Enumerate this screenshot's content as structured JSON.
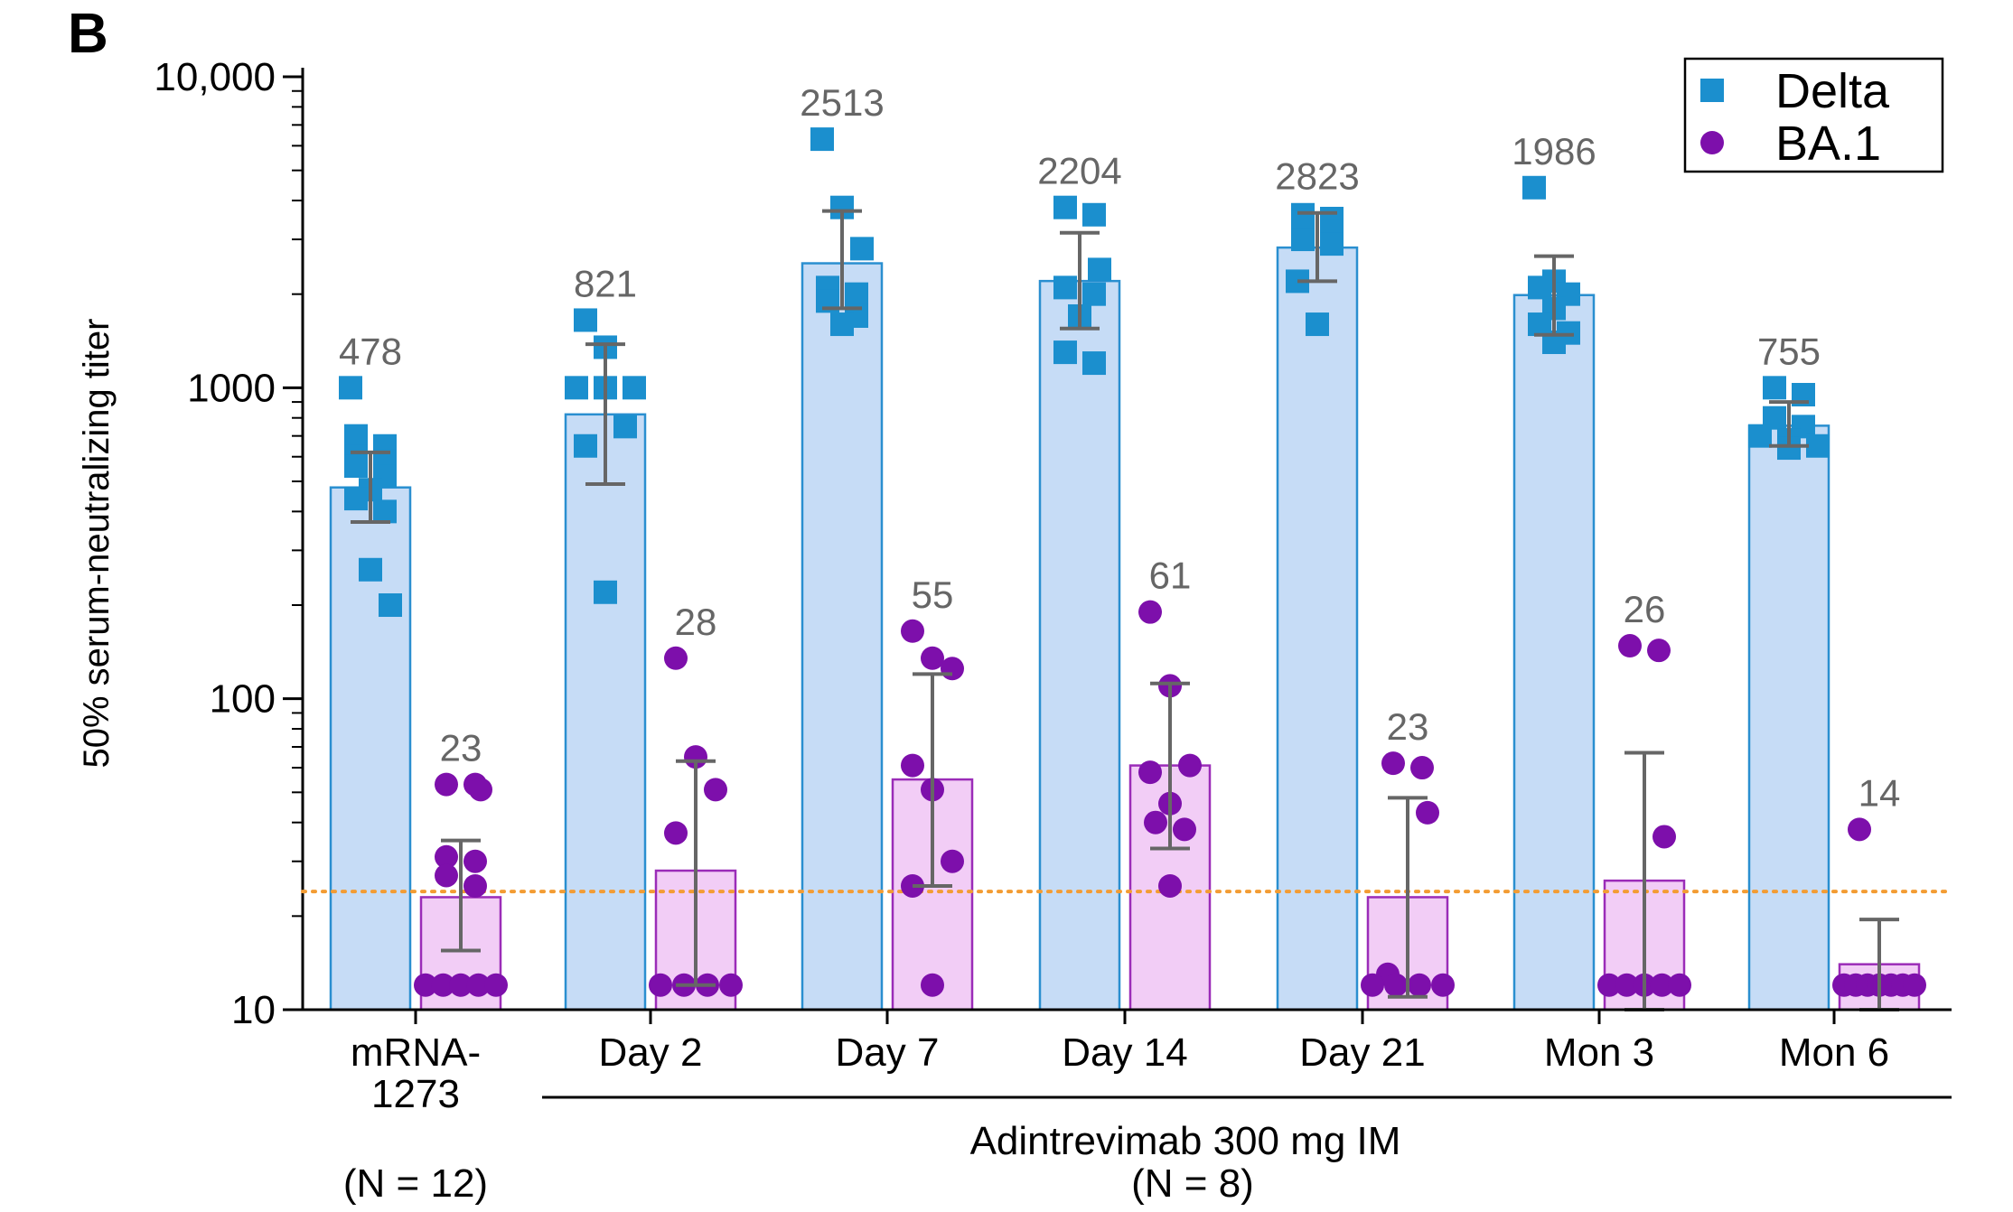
{
  "panel_label": "B",
  "chart_data": {
    "type": "bar",
    "y_scale": "log",
    "ylim": [
      10,
      10000
    ],
    "ylabel": "50% serum-neutralizing titer",
    "y_ticks": [
      10,
      100,
      1000,
      10000
    ],
    "y_tick_labels": [
      "10",
      "100",
      "1000",
      "10,000"
    ],
    "categories": [
      {
        "lines": [
          "mRNA-",
          "1273"
        ]
      },
      {
        "lines": [
          "Day 2"
        ]
      },
      {
        "lines": [
          "Day 7"
        ]
      },
      {
        "lines": [
          "Day 14"
        ]
      },
      {
        "lines": [
          "Day 21"
        ]
      },
      {
        "lines": [
          "Mon 3"
        ]
      },
      {
        "lines": [
          "Mon 6"
        ]
      }
    ],
    "reference_line": {
      "value": 24,
      "style": "dotted",
      "color": "#f39c33"
    },
    "legend": {
      "placement": "top-right"
    },
    "series": [
      {
        "name": "Delta",
        "marker": "square",
        "color": "#1b8fce",
        "bar_fill": "#c6dcf6",
        "bar_stroke": "#2a8fd0",
        "values": [
          478,
          821,
          2513,
          2204,
          2823,
          1986,
          755
        ],
        "labels": [
          "478",
          "821",
          "2513",
          "2204",
          "2823",
          "1986",
          "755"
        ],
        "error": [
          [
            370,
            620
          ],
          [
            490,
            1380
          ],
          [
            1800,
            3700
          ],
          [
            1550,
            3150
          ],
          [
            2200,
            3650
          ],
          [
            1480,
            2650
          ],
          [
            650,
            900
          ]
        ],
        "points": [
          [
            1000,
            700,
            650,
            600,
            580,
            560,
            520,
            470,
            440,
            400,
            260,
            200
          ],
          [
            1650,
            1350,
            1000,
            1000,
            1000,
            750,
            650,
            220
          ],
          [
            6300,
            3800,
            2800,
            2100,
            2000,
            1900,
            1700,
            1600
          ],
          [
            3800,
            3600,
            2400,
            2100,
            2000,
            1300,
            1200,
            1700
          ],
          [
            3600,
            3500,
            3400,
            3200,
            3000,
            2900,
            2200,
            1600
          ],
          [
            4400,
            2200,
            2100,
            2000,
            1800,
            1600,
            1500,
            1400
          ],
          [
            1000,
            950,
            800,
            750,
            700,
            680,
            650,
            640
          ]
        ]
      },
      {
        "name": "BA.1",
        "marker": "circle",
        "color": "#7d0fab",
        "bar_fill": "#f2cdf6",
        "bar_stroke": "#9b2cb8",
        "values": [
          23,
          28,
          55,
          61,
          23,
          26,
          14
        ],
        "labels": [
          "23",
          "28",
          "55",
          "61",
          "23",
          "26",
          "14"
        ],
        "error": [
          [
            15.5,
            35
          ],
          [
            12,
            63
          ],
          [
            25,
            120
          ],
          [
            33,
            112
          ],
          [
            11,
            48
          ],
          [
            10,
            67
          ],
          [
            10,
            19.5
          ]
        ],
        "points": [
          [
            53,
            53,
            51,
            31,
            30,
            27,
            25,
            12,
            12,
            12,
            12,
            12
          ],
          [
            135,
            65,
            51,
            37,
            12,
            12,
            12,
            12
          ],
          [
            165,
            135,
            125,
            61,
            51,
            30,
            25,
            12
          ],
          [
            190,
            110,
            61,
            58,
            46,
            40,
            38,
            25
          ],
          [
            62,
            60,
            43,
            13,
            12,
            12,
            12,
            12
          ],
          [
            148,
            143,
            36,
            12,
            12,
            12,
            12,
            12
          ],
          [
            38,
            12,
            12,
            12,
            12,
            12,
            12,
            12
          ]
        ]
      }
    ]
  },
  "group_annotations": [
    {
      "lines": [
        "(N = 12)"
      ]
    },
    {
      "lines": [
        "Adintrevimab 300 mg IM",
        "(N = 8)"
      ]
    }
  ]
}
